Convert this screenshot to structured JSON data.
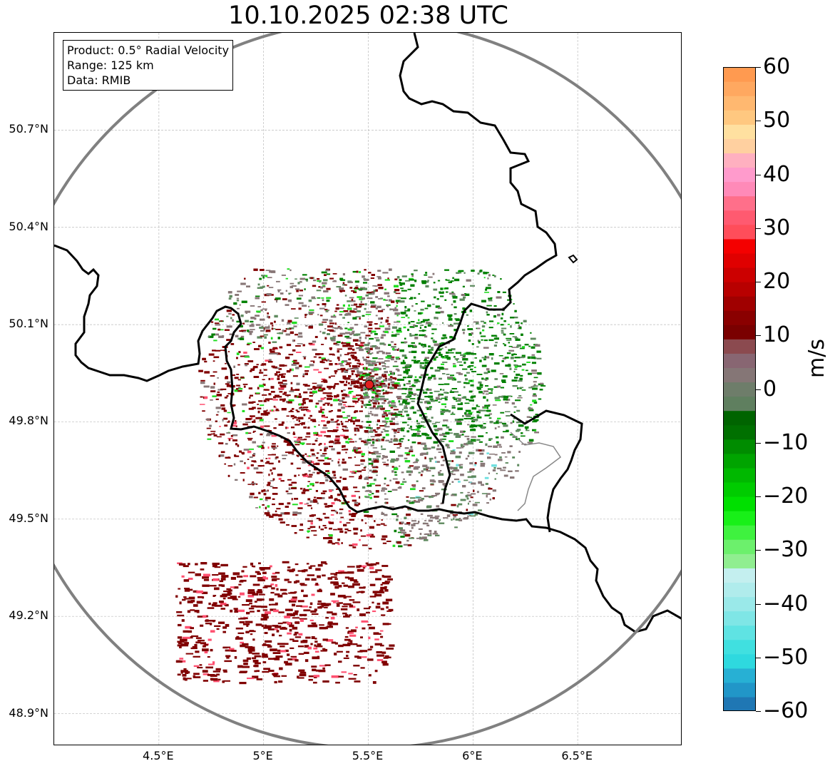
{
  "title": "10.10.2025 02:38 UTC",
  "info": {
    "product": "Product: 0.5° Radial Velocity",
    "range": "Range: 125 km",
    "data": "Data: RMIB"
  },
  "axes": {
    "lon_range": [
      4.0,
      7.0
    ],
    "lat_range": [
      48.8,
      51.0
    ],
    "x_ticks": [
      {
        "value": 4.5,
        "label": "4.5°E"
      },
      {
        "value": 5.0,
        "label": "5°E"
      },
      {
        "value": 5.5,
        "label": "5.5°E"
      },
      {
        "value": 6.0,
        "label": "6°E"
      },
      {
        "value": 6.5,
        "label": "6.5°E"
      }
    ],
    "y_ticks": [
      {
        "value": 50.7,
        "label": "50.7°N"
      },
      {
        "value": 50.4,
        "label": "50.4°N"
      },
      {
        "value": 50.1,
        "label": "50.1°N"
      },
      {
        "value": 49.8,
        "label": "49.8°N"
      },
      {
        "value": 49.5,
        "label": "49.5°N"
      },
      {
        "value": 49.2,
        "label": "49.2°N"
      },
      {
        "value": 48.9,
        "label": "48.9°N"
      }
    ]
  },
  "radar": {
    "site_lon": 5.505,
    "site_lat": 49.915,
    "range_km": 125,
    "site_color": "#e02020",
    "ring_color": "#808080"
  },
  "colorbar": {
    "label": "m/s",
    "min": -60,
    "max": 60,
    "ticks": [
      {
        "value": 60,
        "label": "60"
      },
      {
        "value": 50,
        "label": "50"
      },
      {
        "value": 40,
        "label": "40"
      },
      {
        "value": 30,
        "label": "30"
      },
      {
        "value": 20,
        "label": "20"
      },
      {
        "value": 10,
        "label": "10"
      },
      {
        "value": 0,
        "label": "0"
      },
      {
        "value": -10,
        "label": "−10"
      },
      {
        "value": -20,
        "label": "−20"
      },
      {
        "value": -30,
        "label": "−30"
      },
      {
        "value": -40,
        "label": "−40"
      },
      {
        "value": -50,
        "label": "−50"
      },
      {
        "value": -60,
        "label": "−60"
      }
    ],
    "colors": [
      "#1f77b4",
      "#2196c8",
      "#27b0d4",
      "#2ed9df",
      "#40e0e0",
      "#5fe3e3",
      "#7fe6e6",
      "#9ae9e9",
      "#b0ecec",
      "#c4efef",
      "#90ee90",
      "#6cf06c",
      "#3ff23f",
      "#18f018",
      "#00e000",
      "#00cc00",
      "#00b800",
      "#00a400",
      "#008c00",
      "#007000",
      "#006400",
      "#5f7f5f",
      "#6e7d6a",
      "#857676",
      "#886672",
      "#8b4a4f",
      "#7a0000",
      "#8a0000",
      "#a00000",
      "#b80000",
      "#cc0000",
      "#e00000",
      "#f40000",
      "#ff4d5a",
      "#ff5a70",
      "#ff6f8a",
      "#ff8ab8",
      "#ff9bcc",
      "#ffb0c0",
      "#ffd0a0",
      "#ffe0a0",
      "#ffc880",
      "#ffb870",
      "#ffa860",
      "#ff9a50"
    ]
  },
  "echo_colors": {
    "inbound_strong": "#008000",
    "inbound_weak": "#5f8a5f",
    "near_zero": "#887777",
    "outbound": "#800000",
    "bright_green": "#22dd22",
    "pink": "#ff5070",
    "cyan": "#70e0e0"
  }
}
